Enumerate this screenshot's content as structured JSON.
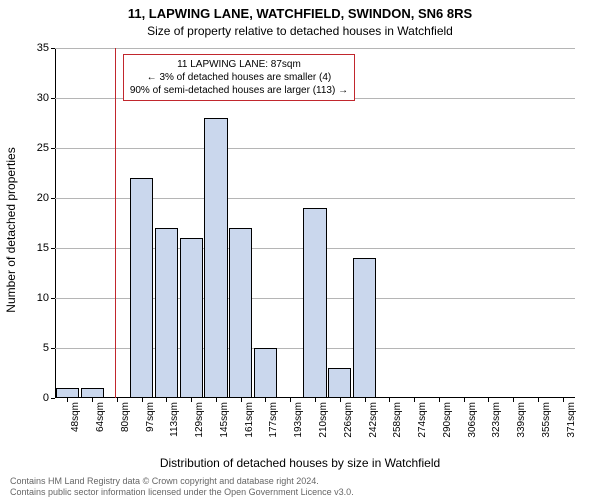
{
  "title": "11, LAPWING LANE, WATCHFIELD, SWINDON, SN6 8RS",
  "subtitle": "Size of property relative to detached houses in Watchfield",
  "ylabel": "Number of detached properties",
  "xlabel": "Distribution of detached houses by size in Watchfield",
  "footer_line1": "Contains HM Land Registry data © Crown copyright and database right 2024.",
  "footer_line2": "Contains public sector information licensed under the Open Government Licence v3.0.",
  "chart": {
    "type": "histogram",
    "ylim": [
      0,
      35
    ],
    "ytick_step": 5,
    "x_tick_labels": [
      "48sqm",
      "64sqm",
      "80sqm",
      "97sqm",
      "113sqm",
      "129sqm",
      "145sqm",
      "161sqm",
      "177sqm",
      "193sqm",
      "210sqm",
      "226sqm",
      "242sqm",
      "258sqm",
      "274sqm",
      "290sqm",
      "306sqm",
      "323sqm",
      "339sqm",
      "355sqm",
      "371sqm"
    ],
    "bar_values": [
      1,
      1,
      0,
      22,
      17,
      16,
      28,
      17,
      5,
      0,
      19,
      3,
      14,
      0,
      0,
      0,
      0,
      0,
      0,
      0,
      0
    ],
    "bar_fill": "#cad7ed",
    "bar_stroke": "#000000",
    "bar_gap_ratio": 0.06,
    "background_color": "#ffffff",
    "grid_color": "#b5b5b5",
    "axis_color": "#000000",
    "marker": {
      "value_sqm": 87,
      "x_range_sqm": [
        48,
        387
      ],
      "color": "#c1272d"
    },
    "annotation": {
      "line1": "11 LAPWING LANE: 87sqm",
      "line2": "← 3% of detached houses are smaller (4)",
      "line3": "90% of semi-detached houses are larger (113) →",
      "border_color": "#c1272d"
    },
    "title_fontsize": 13,
    "subtitle_fontsize": 12,
    "label_fontsize": 12,
    "tick_fontsize": 11,
    "xtick_fontsize": 10
  }
}
